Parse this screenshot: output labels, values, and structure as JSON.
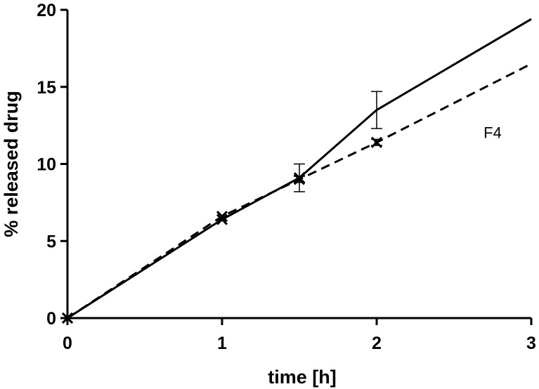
{
  "chart_data": {
    "type": "line",
    "xlabel": "time [h]",
    "ylabel": "% released drug",
    "xlim": [
      0,
      3
    ],
    "ylim": [
      0,
      20
    ],
    "x_ticks": [
      "0",
      "1",
      "2",
      "3"
    ],
    "y_ticks": [
      "0",
      "5",
      "10",
      "15",
      "20"
    ],
    "grid": false,
    "annotations": [
      {
        "text": "F4",
        "x": 2.75,
        "y": 12.0
      }
    ],
    "series": [
      {
        "style": "solid",
        "marker": "cross",
        "x": [
          0,
          1,
          1.5,
          2,
          3
        ],
        "y": [
          0,
          6.4,
          9.1,
          13.5,
          19.4
        ],
        "error": [
          0,
          0,
          0.9,
          1.2,
          0
        ],
        "marked": [
          true,
          true,
          true,
          false,
          false
        ]
      },
      {
        "style": "dashed",
        "marker": "cross",
        "x": [
          0,
          1,
          1.5,
          2,
          3
        ],
        "y": [
          0,
          6.6,
          9.0,
          11.4,
          16.5
        ],
        "error": [
          0,
          0,
          0.2,
          0.2,
          0
        ],
        "marked": [
          true,
          true,
          true,
          true,
          false
        ]
      }
    ]
  }
}
